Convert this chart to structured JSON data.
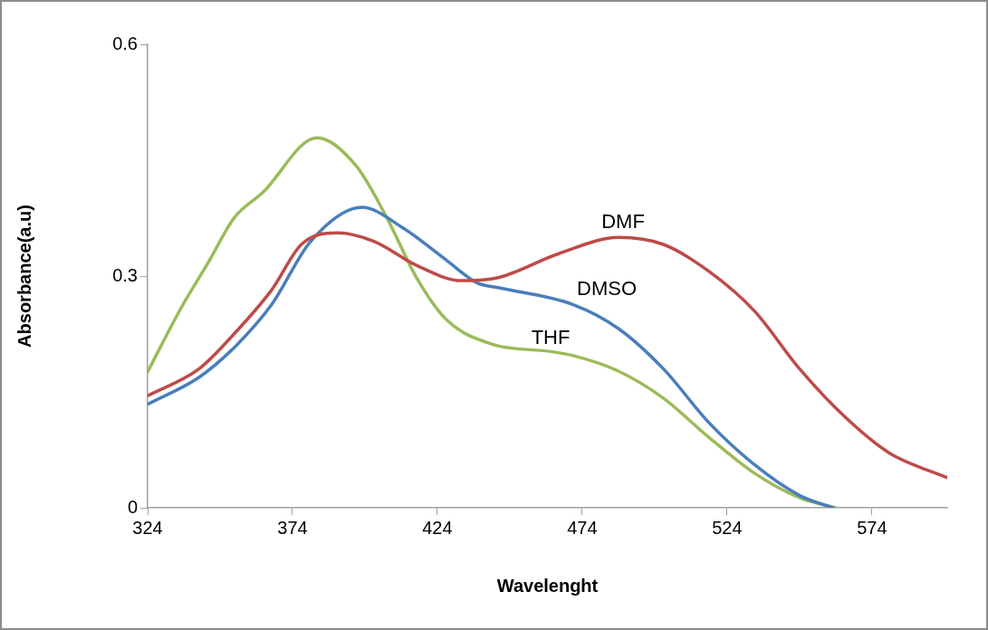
{
  "chart_data": {
    "type": "line",
    "xlabel": "Wavelenght",
    "ylabel": "Absorbance(a.u)",
    "xlim": [
      324,
      600
    ],
    "xticks": [
      324,
      374,
      424,
      474,
      524,
      574
    ],
    "ylim": [
      0,
      0.6
    ],
    "yticks": [
      0,
      0.3,
      0.6
    ],
    "grid": false,
    "legend": false,
    "marker": "none",
    "line_style": "solid",
    "series": [
      {
        "name": "DMF",
        "color": "#be4b48",
        "x": [
          324,
          341.8,
          354.3,
          366.8,
          377.1,
          389.6,
          402.1,
          416.8,
          432.4,
          445,
          465.9,
          486.5,
          502,
          517.8,
          533.4,
          549,
          564.6,
          580,
          600
        ],
        "values": [
          0.145,
          0.18,
          0.227,
          0.282,
          0.341,
          0.356,
          0.345,
          0.314,
          0.294,
          0.298,
          0.329,
          0.35,
          0.341,
          0.306,
          0.255,
          0.18,
          0.118,
          0.071,
          0.039
        ]
      },
      {
        "name": "DMSO",
        "color": "#4a7ebb",
        "x": [
          324,
          341.8,
          354.3,
          366.8,
          380.3,
          398,
          411.5,
          427,
          437.8,
          445,
          470.9,
          486.5,
          502,
          517.8,
          533.4,
          549,
          560.6
        ],
        "values": [
          0.134,
          0.169,
          0.209,
          0.263,
          0.345,
          0.389,
          0.364,
          0.321,
          0.291,
          0.285,
          0.263,
          0.232,
          0.18,
          0.11,
          0.056,
          0.016,
          0
        ]
      },
      {
        "name": "THF",
        "color": "#9bbb59",
        "x": [
          324,
          335.6,
          345,
          354,
          363.7,
          382.4,
          395.9,
          406.5,
          416.8,
          427,
          442.7,
          463.7,
          470.9,
          486.5,
          502,
          517.8,
          533.4,
          549,
          561.5
        ],
        "values": [
          0.176,
          0.259,
          0.318,
          0.376,
          0.408,
          0.479,
          0.443,
          0.376,
          0.298,
          0.244,
          0.212,
          0.202,
          0.197,
          0.177,
          0.142,
          0.091,
          0.045,
          0.013,
          0
        ]
      }
    ]
  }
}
